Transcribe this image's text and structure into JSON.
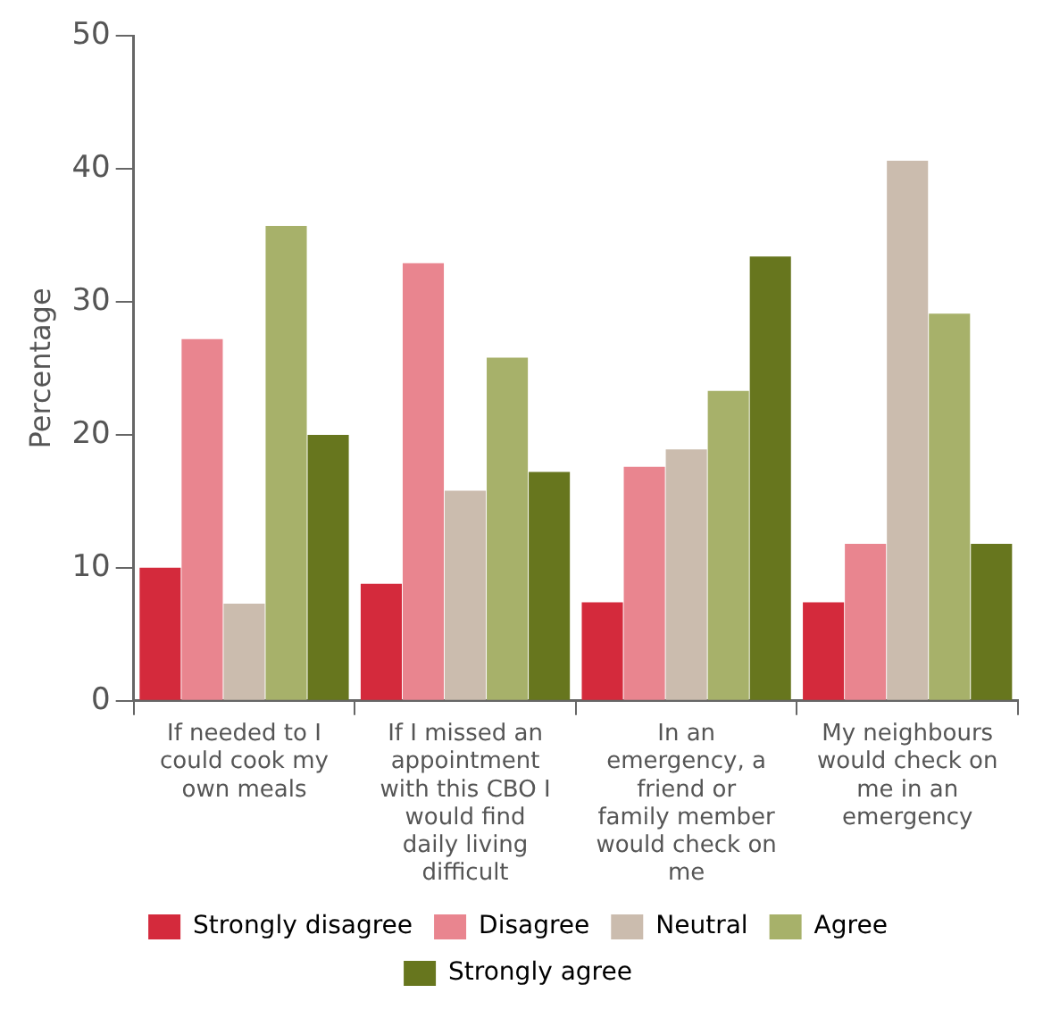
{
  "chart_data": {
    "type": "bar",
    "ylabel": "Percentage",
    "categories": [
      "If needed to I could cook my own meals",
      "If I missed an appointment with this CBO I would find daily living difficult",
      "In an emergency, a friend or family member would check on me",
      "My neighbours would check on me in an emergency"
    ],
    "series": [
      {
        "name": "Strongly disagree",
        "color": "#d42a3c",
        "values": [
          10,
          8.8,
          7.4,
          7.4
        ]
      },
      {
        "name": "Disagree",
        "color": "#e9858f",
        "values": [
          27.2,
          32.9,
          17.6,
          11.8
        ]
      },
      {
        "name": "Neutral",
        "color": "#cbbcae",
        "values": [
          7.3,
          15.8,
          18.9,
          40.6
        ]
      },
      {
        "name": "Agree",
        "color": "#a7b16a",
        "values": [
          35.7,
          25.8,
          23.3,
          29.1
        ]
      },
      {
        "name": "Strongly agree",
        "color": "#67761e",
        "values": [
          20,
          17.2,
          33.4,
          11.8
        ]
      }
    ],
    "ylim": [
      0,
      50
    ],
    "yticks": [
      0,
      10,
      20,
      30,
      40,
      50
    ],
    "grid": false,
    "legend": "bottom"
  }
}
